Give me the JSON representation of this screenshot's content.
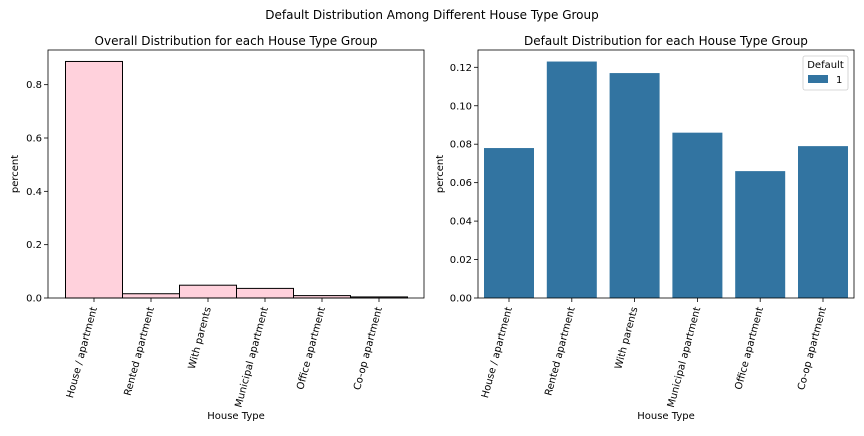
{
  "figure": {
    "suptitle": "Default Distribution Among Different House Type Group"
  },
  "chart_data": [
    {
      "type": "bar",
      "title": "Overall Distribution for each House Type Group",
      "xlabel": "House Type",
      "ylabel": "percent",
      "categories": [
        "House / apartment",
        "Rented apartment",
        "With parents",
        "Municipal apartment",
        "Office apartment",
        "Co-op apartment"
      ],
      "values": [
        0.887,
        0.016,
        0.048,
        0.036,
        0.009,
        0.004
      ],
      "ylim": [
        0,
        0.93
      ],
      "yticks": [
        0.0,
        0.2,
        0.4,
        0.6,
        0.8
      ],
      "ytick_labels": [
        "0.0",
        "0.2",
        "0.4",
        "0.6",
        "0.8"
      ],
      "bar_color": "#ffd1dc",
      "edge_color": "#000000",
      "grid": false,
      "legend": null
    },
    {
      "type": "bar",
      "title": "Default Distribution for each House Type Group",
      "xlabel": "House Type",
      "ylabel": "percent",
      "categories": [
        "House / apartment",
        "Rented apartment",
        "With parents",
        "Municipal apartment",
        "Office apartment",
        "Co-op apartment"
      ],
      "series": [
        {
          "name": "1",
          "values": [
            0.078,
            0.123,
            0.117,
            0.086,
            0.066,
            0.079
          ]
        }
      ],
      "ylim": [
        0,
        0.129
      ],
      "yticks": [
        0.0,
        0.02,
        0.04,
        0.06,
        0.08,
        0.1,
        0.12
      ],
      "ytick_labels": [
        "0.00",
        "0.02",
        "0.04",
        "0.06",
        "0.08",
        "0.10",
        "0.12"
      ],
      "bar_color": "#3274a1",
      "grid": false,
      "legend": {
        "title": "Default",
        "placement": "top-right"
      }
    }
  ]
}
